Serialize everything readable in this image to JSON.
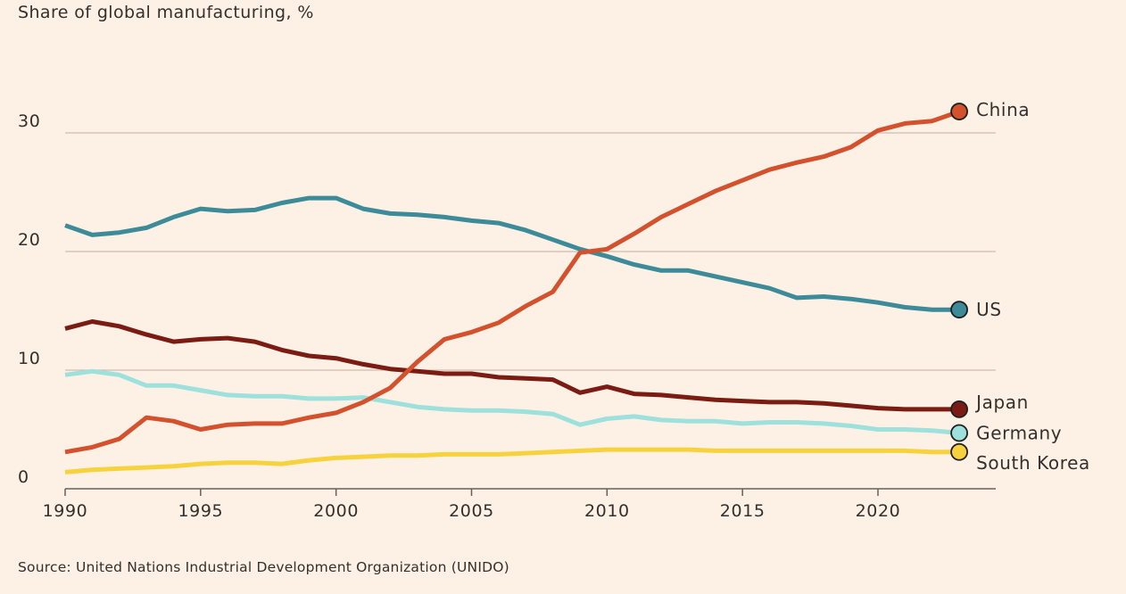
{
  "chart_data": {
    "type": "line",
    "subtitle": "Share of global manufacturing, %",
    "source": "Source: United Nations Industrial Development Organization (UNIDO)",
    "x": [
      1990,
      1991,
      1992,
      1993,
      1994,
      1995,
      1996,
      1997,
      1998,
      1999,
      2000,
      2001,
      2002,
      2003,
      2004,
      2005,
      2006,
      2007,
      2008,
      2009,
      2010,
      2011,
      2012,
      2013,
      2014,
      2015,
      2016,
      2017,
      2018,
      2019,
      2020,
      2021,
      2022,
      2023
    ],
    "xlim": [
      1990,
      2024
    ],
    "ylim": [
      0,
      35
    ],
    "x_ticks": [
      {
        "value": 1990,
        "label": "1990"
      },
      {
        "value": 1995,
        "label": "1995"
      },
      {
        "value": 2000,
        "label": "2000"
      },
      {
        "value": 2005,
        "label": "2005"
      },
      {
        "value": 2010,
        "label": "2010"
      },
      {
        "value": 2015,
        "label": "2015"
      },
      {
        "value": 2020,
        "label": "2020"
      }
    ],
    "y_ticks": [
      {
        "value": 0,
        "label": "0"
      },
      {
        "value": 10,
        "label": "10"
      },
      {
        "value": 20,
        "label": "20"
      },
      {
        "value": 30,
        "label": "30"
      }
    ],
    "grid": "horizontal",
    "series": [
      {
        "name": "China",
        "color": "#d4512e",
        "values": [
          3.1,
          3.5,
          4.2,
          6.0,
          5.7,
          5.0,
          5.4,
          5.5,
          5.5,
          6.0,
          6.4,
          7.3,
          8.5,
          10.7,
          12.6,
          13.2,
          14.0,
          15.4,
          16.6,
          19.9,
          20.2,
          21.5,
          22.9,
          24.0,
          25.1,
          26.0,
          26.9,
          27.5,
          28.0,
          28.8,
          30.2,
          30.8,
          31.0,
          31.8
        ]
      },
      {
        "name": "US",
        "color": "#3d8b98",
        "values": [
          22.2,
          21.4,
          21.6,
          22.0,
          22.9,
          23.6,
          23.4,
          23.5,
          24.1,
          24.5,
          24.5,
          23.6,
          23.2,
          23.1,
          22.9,
          22.6,
          22.4,
          21.8,
          21.0,
          20.2,
          19.6,
          18.9,
          18.4,
          18.4,
          17.9,
          17.4,
          16.9,
          16.1,
          16.2,
          16.0,
          15.7,
          15.3,
          15.1,
          15.1
        ]
      },
      {
        "name": "Japan",
        "color": "#7a1c14",
        "values": [
          13.5,
          14.1,
          13.7,
          13.0,
          12.4,
          12.6,
          12.7,
          12.4,
          11.7,
          11.2,
          11.0,
          10.5,
          10.1,
          9.9,
          9.7,
          9.7,
          9.4,
          9.3,
          9.2,
          8.1,
          8.6,
          8.0,
          7.9,
          7.7,
          7.5,
          7.4,
          7.3,
          7.3,
          7.2,
          7.0,
          6.8,
          6.7,
          6.7,
          6.7
        ]
      },
      {
        "name": "Germany",
        "color": "#9ee0dc",
        "values": [
          9.6,
          9.9,
          9.6,
          8.7,
          8.7,
          8.3,
          7.9,
          7.8,
          7.8,
          7.6,
          7.6,
          7.7,
          7.3,
          6.9,
          6.7,
          6.6,
          6.6,
          6.5,
          6.3,
          5.4,
          5.9,
          6.1,
          5.8,
          5.7,
          5.7,
          5.5,
          5.6,
          5.6,
          5.5,
          5.3,
          5.0,
          5.0,
          4.9,
          4.7
        ]
      },
      {
        "name": "South Korea",
        "color": "#f8d23c",
        "values": [
          1.4,
          1.6,
          1.7,
          1.8,
          1.9,
          2.1,
          2.2,
          2.2,
          2.1,
          2.4,
          2.6,
          2.7,
          2.8,
          2.8,
          2.9,
          2.9,
          2.9,
          3.0,
          3.1,
          3.2,
          3.3,
          3.3,
          3.3,
          3.3,
          3.2,
          3.2,
          3.2,
          3.2,
          3.2,
          3.2,
          3.2,
          3.2,
          3.1,
          3.1
        ]
      }
    ]
  }
}
